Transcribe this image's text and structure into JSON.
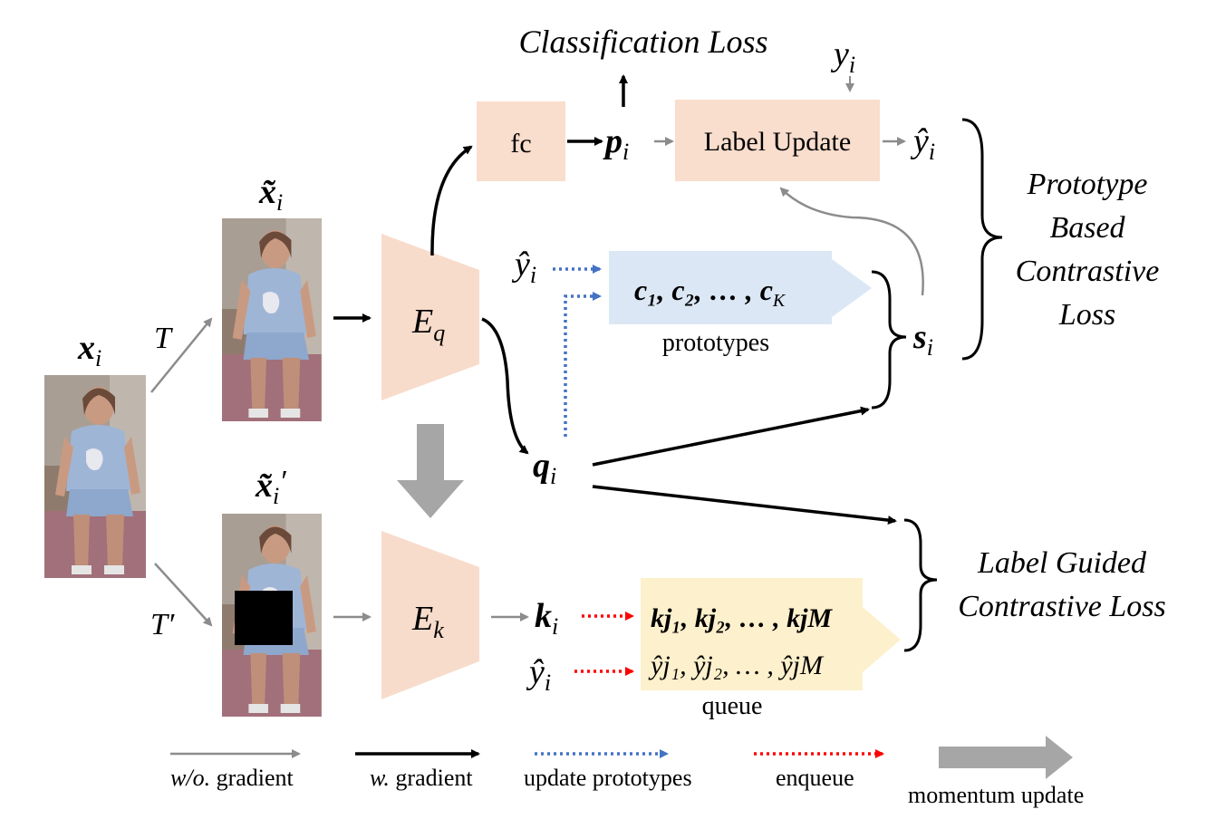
{
  "inputs": {
    "x": {
      "base": "x",
      "sub": "i"
    },
    "x_tilde": {
      "base": "x̃",
      "sub": "i"
    },
    "x_tilde_prime": {
      "base": "x̃",
      "sub": "i",
      "prime": "′"
    },
    "T": "T",
    "T_prime": "T′"
  },
  "encoders": {
    "Eq": {
      "base": "E",
      "sub": "q"
    },
    "Ek": {
      "base": "E",
      "sub": "k"
    }
  },
  "classifier": {
    "fc": "fc",
    "p": {
      "base": "p",
      "sub": "i"
    },
    "classification_loss": "Classification Loss",
    "y": {
      "base": "y",
      "sub": "i"
    },
    "label_update": "Label Update",
    "y_hat": {
      "base": "ŷ",
      "sub": "i"
    }
  },
  "prototypes": {
    "y_hat": {
      "base": "ŷ",
      "sub": "i"
    },
    "list": "c₁, c₂, … , c",
    "list_last_sub": "K",
    "label": "prototypes",
    "s": {
      "base": "s",
      "sub": "i"
    },
    "loss_lines": [
      "Prototype",
      "Based",
      "Contrastive",
      "Loss"
    ]
  },
  "query": {
    "base": "q",
    "sub": "i"
  },
  "key": {
    "base": "k",
    "sub": "i"
  },
  "queue": {
    "y_hat": {
      "base": "ŷ",
      "sub": "i"
    },
    "keys": "k",
    "labels": "ŷ",
    "keys_text": "kj₁, kj₂, … , kjM",
    "labels_text": "ŷj₁, ŷj₂, … , ŷjM",
    "label": "queue",
    "loss_lines": [
      "Label Guided",
      "Contrastive Loss"
    ]
  },
  "legend": {
    "no_gradient_italic": "w/o.",
    "no_gradient": " gradient",
    "gradient_italic": "w.",
    "gradient": " gradient",
    "update_prototypes": "update prototypes",
    "enqueue": "enqueue",
    "momentum_update": "momentum update"
  },
  "colors": {
    "encoder": "#f8dccb",
    "fc_box": "#f9ddcd",
    "prototype_box": "#dbe7f4",
    "queue_box": "#fdf0cc",
    "gray_arrow": "#8c8c8c",
    "black_arrow": "#000000",
    "blue_dotted": "#4472c4",
    "red_dotted": "#ff0000",
    "momentum_arrow": "#a6a6a6"
  }
}
